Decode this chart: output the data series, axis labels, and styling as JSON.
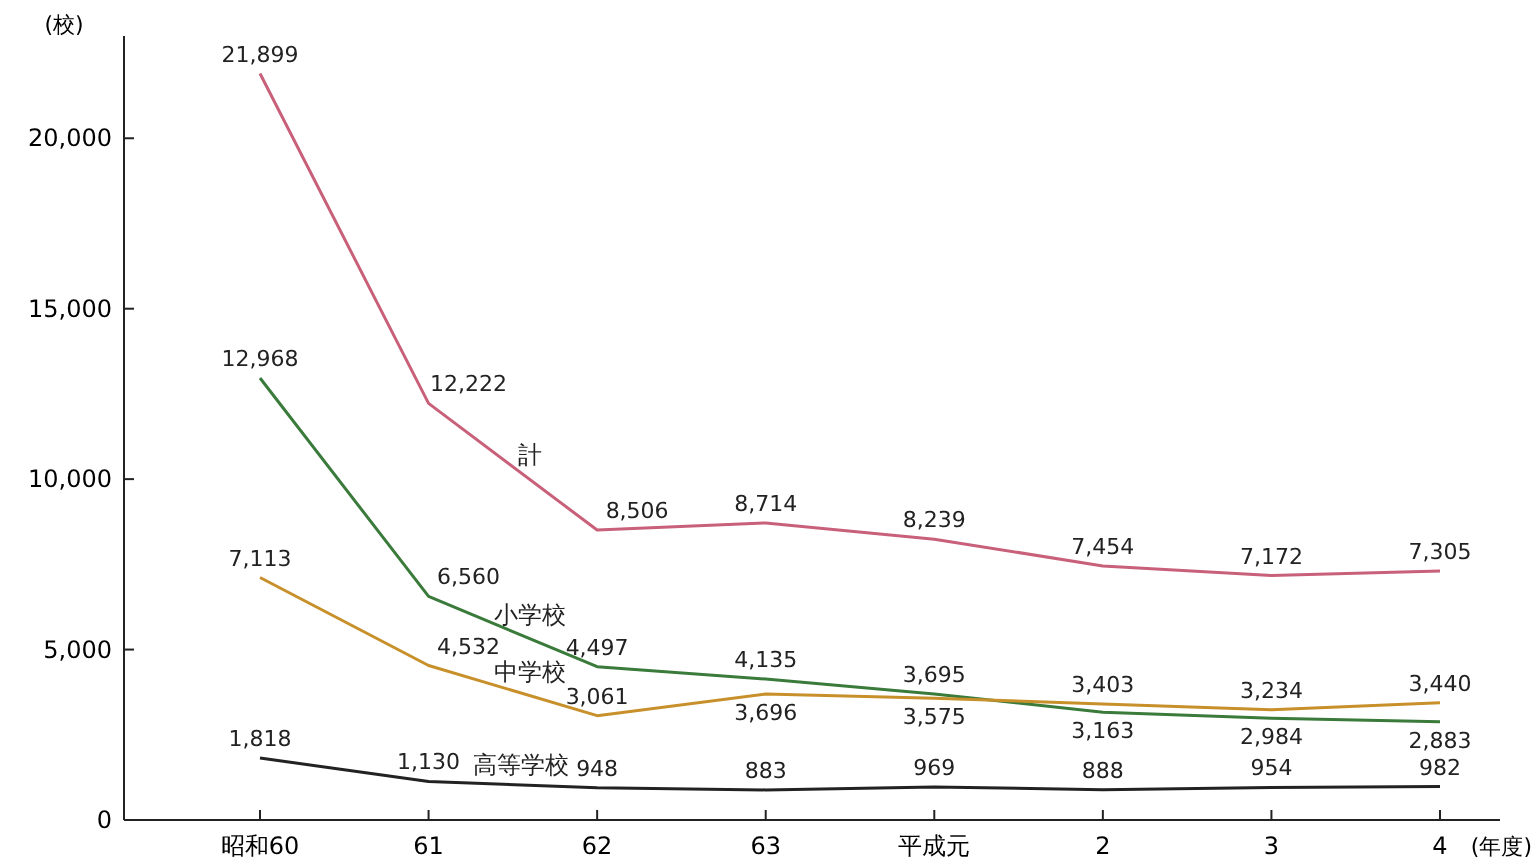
{
  "chart_data": {
    "type": "line",
    "ylabel": "(校)",
    "xlabel": "(年度)",
    "categories": [
      "昭和60",
      "61",
      "62",
      "63",
      "平成元",
      "2",
      "3",
      "4"
    ],
    "series": [
      {
        "name": "計",
        "color": "#c8607a",
        "values": [
          21899,
          12222,
          8506,
          8714,
          8239,
          7454,
          7172,
          7305
        ],
        "value_labels": [
          "21,899",
          "12,222",
          "8,506",
          "8,714",
          "8,239",
          "7,454",
          "7,172",
          "7,305"
        ]
      },
      {
        "name": "小学校",
        "color": "#3a7a3a",
        "values": [
          12968,
          6560,
          4497,
          4135,
          3695,
          3163,
          2984,
          2883
        ],
        "value_labels": [
          "12,968",
          "6,560",
          "4,497",
          "4,135",
          "3,695",
          "3,163",
          "2,984",
          "2,883"
        ]
      },
      {
        "name": "中学校",
        "color": "#c8902a",
        "values": [
          7113,
          4532,
          3061,
          3696,
          3575,
          3403,
          3234,
          3440
        ],
        "value_labels": [
          "7,113",
          "4,532",
          "3,061",
          "3,696",
          "3,575",
          "3,403",
          "3,234",
          "3,440"
        ]
      },
      {
        "name": "高等学校",
        "color": "#222222",
        "values": [
          1818,
          1130,
          948,
          883,
          969,
          888,
          954,
          982
        ],
        "value_labels": [
          "1,818",
          "1,130",
          "948",
          "883",
          "969",
          "888",
          "954",
          "982"
        ]
      }
    ],
    "ylim": [
      0,
      23000
    ],
    "yticks": [
      0,
      {
        "value": 5000,
        "label": "5,000"
      },
      {
        "value": 10000,
        "label": "10,000"
      },
      {
        "value": 15000,
        "label": "15,000"
      },
      {
        "value": 20000,
        "label": "20,000"
      }
    ],
    "grid": false,
    "legend": false,
    "marker": "none",
    "line_style": "solid"
  }
}
